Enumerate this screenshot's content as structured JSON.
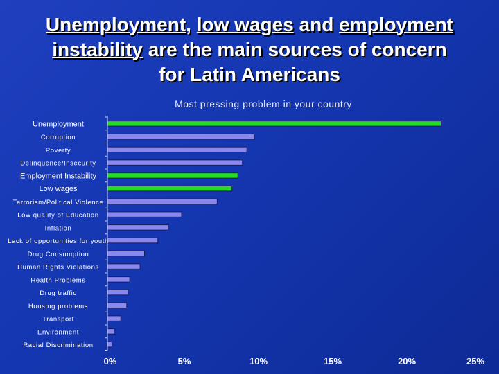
{
  "title": {
    "segments": [
      {
        "text": "Unemployment",
        "underline": true
      },
      {
        "text": ", ",
        "underline": false
      },
      {
        "text": "low wages",
        "underline": true
      },
      {
        "text": " and ",
        "underline": false
      },
      {
        "text": "employment",
        "underline": true
      },
      {
        "text": "\n",
        "underline": false
      },
      {
        "text": "instability",
        "underline": true
      },
      {
        "text": " are the main sources of concern",
        "underline": false
      },
      {
        "text": "\n",
        "underline": false
      },
      {
        "text": "for Latin Americans",
        "underline": false
      }
    ]
  },
  "chart_data": {
    "type": "bar",
    "orientation": "horizontal",
    "title": "Most pressing problem in your country",
    "categories": [
      "Unemployment",
      "Corruption",
      "Poverty",
      "Delinquence/Insecurity",
      "Employment Instability",
      "Low wages",
      "Terrorism/Political Violence",
      "Low quality of Education",
      "Inflation",
      "Lack of opportunities for youth",
      "Drug Consumption",
      "Human Rights Violations",
      "Health Problems",
      "Drug traffic",
      "Housing problems",
      "Transport",
      "Environment",
      "Racial Discrimination"
    ],
    "values": [
      22.5,
      9.9,
      9.4,
      9.1,
      8.8,
      8.4,
      7.4,
      5.0,
      4.1,
      3.4,
      2.5,
      2.2,
      1.5,
      1.4,
      1.3,
      0.9,
      0.5,
      0.3
    ],
    "highlighted": [
      "Unemployment",
      "Employment Instability",
      "Low wages"
    ],
    "xlim": [
      0,
      25
    ],
    "xticks": [
      "0%",
      "5%",
      "10%",
      "15%",
      "20%",
      "25%"
    ],
    "colors": {
      "bar": "#8888ee",
      "highlight": "#22dd22",
      "bar_border": "#1a1a5a",
      "axis": "#c8d0ff"
    }
  }
}
